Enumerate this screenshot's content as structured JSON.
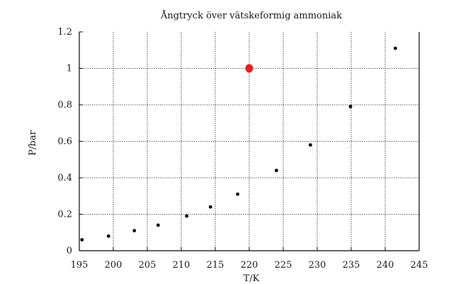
{
  "chart_data": {
    "type": "scatter",
    "title": "Ångtryck över vätskeformig ammoniak",
    "xlabel": "T/K",
    "ylabel": "P/bar",
    "xlim": [
      195,
      245
    ],
    "ylim": [
      0,
      1.2
    ],
    "x_ticks": [
      195,
      200,
      205,
      210,
      215,
      220,
      225,
      230,
      235,
      240,
      245
    ],
    "x_tick_labels": [
      "195",
      "200",
      "205",
      "210",
      "215",
      "220",
      "225",
      "230",
      "235",
      "240",
      "245"
    ],
    "y_ticks": [
      0,
      0.2,
      0.4,
      0.6,
      0.8,
      1,
      1.2
    ],
    "y_tick_labels": [
      "0",
      "0.2",
      "0.4",
      "0.6",
      "0.8",
      "1",
      "1.2"
    ],
    "grid": true,
    "series": [
      {
        "color": "#000000",
        "points": [
          {
            "x": 195.4,
            "y": 0.06
          },
          {
            "x": 199.3,
            "y": 0.08
          },
          {
            "x": 203.1,
            "y": 0.11
          },
          {
            "x": 206.6,
            "y": 0.14
          },
          {
            "x": 210.8,
            "y": 0.19
          },
          {
            "x": 214.3,
            "y": 0.24
          },
          {
            "x": 218.3,
            "y": 0.31
          },
          {
            "x": 224.0,
            "y": 0.44
          },
          {
            "x": 229.0,
            "y": 0.58
          },
          {
            "x": 234.9,
            "y": 0.79
          },
          {
            "x": 241.5,
            "y": 1.11
          }
        ]
      },
      {
        "color": "#e8201c",
        "highlight": true,
        "points": [
          {
            "x": 220.0,
            "y": 1.0
          }
        ]
      }
    ]
  }
}
